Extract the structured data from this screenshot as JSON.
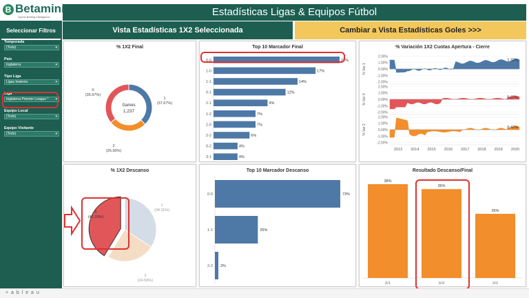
{
  "brand": {
    "logo": "Betaminic",
    "tagline": "Sports Betting Intelligence"
  },
  "header": {
    "title": "Estadísticas Ligas & Equipos Fútbol"
  },
  "sidebar": {
    "title": "Seleccionar Filtros",
    "filters": [
      {
        "label": "Temporada",
        "value": "(Todo)"
      },
      {
        "label": "País",
        "value": "Inglaterra"
      },
      {
        "label": "Tipo Liga",
        "value": "Ligas Invierno"
      },
      {
        "label": "Liga",
        "value": "Inglaterra Premier League *"
      },
      {
        "label": "Equipo Local",
        "value": "(Todo)"
      },
      {
        "label": "Equipo Visitante",
        "value": "(Todo)"
      }
    ]
  },
  "tabs": {
    "current": "Vista Estadísticas 1X2 Seleccionada",
    "switch": "Cambiar a Vista Estadísticas Goles >>>"
  },
  "panels": {
    "p1x2final": {
      "title": "% 1X2 Final",
      "center_label": "Games",
      "center_value": "1,237",
      "slices": [
        {
          "name": "1",
          "pct": "(37.67%)",
          "value": 37.67,
          "color": "#4e79a7"
        },
        {
          "name": "2",
          "pct": "(26.36%)",
          "value": 26.36,
          "color": "#f28e2b"
        },
        {
          "name": "X",
          "pct": "(35.97%)",
          "value": 35.97,
          "color": "#e15759"
        }
      ]
    },
    "top10final": {
      "title": "Top 10 Marcador Final",
      "color": "#4e79a7",
      "rows": [
        {
          "label": "0-0",
          "value": 21,
          "text": "21%"
        },
        {
          "label": "1-0",
          "value": 17,
          "text": "17%"
        },
        {
          "label": "1-1",
          "value": 14,
          "text": "14%"
        },
        {
          "label": "0-1",
          "value": 12,
          "text": "12%"
        },
        {
          "label": "2-1",
          "value": 9,
          "text": "9%"
        },
        {
          "label": "1-2",
          "value": 7,
          "text": "7%"
        },
        {
          "label": "2-0",
          "value": 7,
          "text": "7%"
        },
        {
          "label": "2-2",
          "value": 6,
          "text": "6%"
        },
        {
          "label": "0-2",
          "value": 4,
          "text": "4%"
        },
        {
          "label": "3-1",
          "value": 4,
          "text": "4%"
        }
      ]
    },
    "variacion": {
      "title": "% Variación 1X2 Cuotas Apertura - Cierre",
      "years": [
        "2013",
        "2014",
        "2015",
        "2016",
        "2017",
        "2018",
        "2019",
        "2020"
      ],
      "ticks": [
        "2.00%",
        "1.00%",
        "0.00%",
        "-1.00%",
        "-2.00%"
      ],
      "rows": [
        {
          "axis": "% Var 1",
          "end_label": "1.32%",
          "color": "#4e79a7"
        },
        {
          "axis": "% Var X",
          "end_label": "0.37%",
          "color": "#e15759"
        },
        {
          "axis": "% Var 2",
          "end_label": "0.42%",
          "color": "#f28e2b"
        }
      ]
    },
    "p1x2descanso": {
      "title": "% 1X2 Descanso",
      "slices": [
        {
          "name": "1",
          "pct": "(34.11%)",
          "value": 34.11,
          "color": "#d4dce7"
        },
        {
          "name": "2",
          "pct": "(24.56%)",
          "value": 24.56,
          "color": "#f5dcc4"
        },
        {
          "name": "X",
          "pct": "(41.33%)",
          "value": 41.33,
          "color": "#e15759"
        }
      ]
    },
    "top10descanso": {
      "title": "Top 10 Marcador Descanso",
      "color": "#4e79a7",
      "rows": [
        {
          "label": "0-0",
          "value": 73,
          "text": "73%"
        },
        {
          "label": "1-1",
          "value": 25,
          "text": "25%"
        },
        {
          "label": "2-2",
          "value": 2,
          "text": "2%"
        }
      ]
    },
    "resultado": {
      "title": "Resultado Descanso/Final",
      "color": "#f28e2b",
      "bars": [
        {
          "label": "X/1",
          "value": 38,
          "text": "38%"
        },
        {
          "label": "X/X",
          "value": 36,
          "text": "36%"
        },
        {
          "label": "X/2",
          "value": 26,
          "text": "26%"
        }
      ]
    }
  },
  "footer": {
    "brand": "+ a b l e a u"
  }
}
